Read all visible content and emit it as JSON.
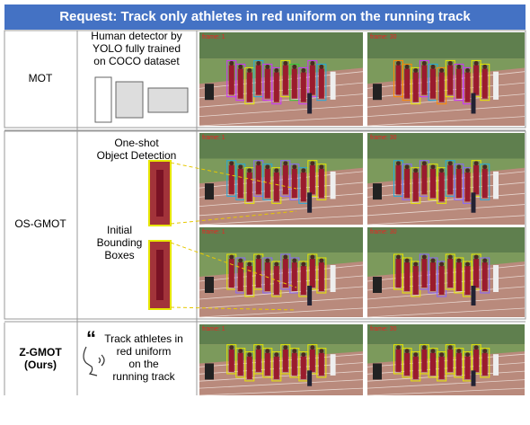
{
  "header": {
    "title": "Request: Track only athletes in red uniform on the running track"
  },
  "rows": [
    {
      "label": [
        "MOT"
      ],
      "description": [
        "Human detector by",
        "YOLO fully trained",
        "on COCO dataset"
      ],
      "frames": [
        "frame: 1",
        "frame: 30"
      ]
    },
    {
      "label": [
        "OS-GMOT"
      ],
      "description": [
        "One-shot",
        "Object Detection"
      ],
      "description2": [
        "Initial",
        "Bounding",
        "Boxes"
      ],
      "frames": [
        "frame: 1",
        "frame: 30",
        "frame: 1",
        "frame: 30"
      ]
    },
    {
      "label": [
        "Z-GMOT",
        "(Ours)"
      ],
      "description": [
        "Track athletes in",
        "red uniform",
        "on the",
        "running track"
      ],
      "frames": [
        "frame: 1",
        "frame: 30"
      ]
    }
  ]
}
